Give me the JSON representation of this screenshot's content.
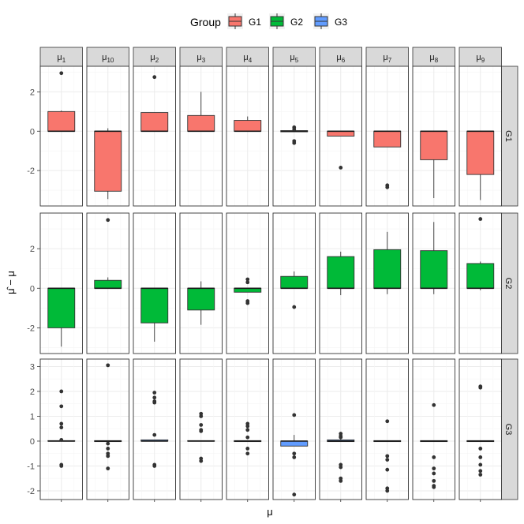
{
  "chart_data": {
    "type": "bar",
    "subtype": "faceted boxplot grid",
    "xlabel": "μ",
    "ylabel": "μ̂ − μ",
    "legend": {
      "title": "Group",
      "position": "top",
      "entries": [
        {
          "name": "G1",
          "color": "#F8766D"
        },
        {
          "name": "G2",
          "color": "#00BA38"
        },
        {
          "name": "G3",
          "color": "#619CFF"
        }
      ]
    },
    "column_labels": [
      {
        "base": "μ",
        "sub": "1"
      },
      {
        "base": "μ",
        "sub": "10"
      },
      {
        "base": "μ",
        "sub": "2"
      },
      {
        "base": "μ",
        "sub": "3"
      },
      {
        "base": "μ",
        "sub": "4"
      },
      {
        "base": "μ",
        "sub": "5"
      },
      {
        "base": "μ",
        "sub": "6"
      },
      {
        "base": "μ",
        "sub": "7"
      },
      {
        "base": "μ",
        "sub": "8"
      },
      {
        "base": "μ",
        "sub": "9"
      }
    ],
    "rows": [
      {
        "label": "G1",
        "color": "#F8766D",
        "ylim": [
          -3.8,
          3.3
        ],
        "yticks": [
          -2,
          0,
          2
        ],
        "tick_labels": [
          "-2",
          "0",
          "2"
        ],
        "boxes": [
          {
            "q1": 0,
            "median": 0,
            "q3": 1.0,
            "wlo": 0,
            "whi": 1.05,
            "outliers": [
              2.95
            ]
          },
          {
            "q1": -3.05,
            "median": 0,
            "q3": 0,
            "wlo": -3.45,
            "whi": 0.15,
            "outliers": []
          },
          {
            "q1": 0,
            "median": 0,
            "q3": 0.95,
            "wlo": 0,
            "whi": 0.95,
            "outliers": [
              2.75
            ]
          },
          {
            "q1": 0,
            "median": 0,
            "q3": 0.8,
            "wlo": 0,
            "whi": 2.0,
            "outliers": []
          },
          {
            "q1": 0,
            "median": 0,
            "q3": 0.55,
            "wlo": 0,
            "whi": 0.75,
            "outliers": []
          },
          {
            "q1": -0.03,
            "median": 0,
            "q3": 0.03,
            "wlo": -0.05,
            "whi": 0.05,
            "outliers": [
              0.2,
              0.1,
              -0.5,
              -0.6
            ]
          },
          {
            "q1": -0.25,
            "median": 0,
            "q3": 0,
            "wlo": -0.25,
            "whi": 0,
            "outliers": [
              -1.85
            ]
          },
          {
            "q1": -0.8,
            "median": 0,
            "q3": 0,
            "wlo": -0.8,
            "whi": 0,
            "outliers": [
              -2.75,
              -2.85
            ]
          },
          {
            "q1": -1.45,
            "median": 0,
            "q3": 0,
            "wlo": -3.4,
            "whi": 0,
            "outliers": []
          },
          {
            "q1": -2.2,
            "median": 0,
            "q3": 0,
            "wlo": -3.5,
            "whi": 0,
            "outliers": []
          }
        ]
      },
      {
        "label": "G2",
        "color": "#00BA38",
        "ylim": [
          -3.3,
          3.8
        ],
        "yticks": [
          -2,
          0,
          2
        ],
        "tick_labels": [
          "-2",
          "0",
          "2"
        ],
        "boxes": [
          {
            "q1": -2.0,
            "median": 0,
            "q3": 0,
            "wlo": -2.95,
            "whi": 0,
            "outliers": []
          },
          {
            "q1": 0,
            "median": 0,
            "q3": 0.4,
            "wlo": 0,
            "whi": 0.55,
            "outliers": [
              3.45
            ]
          },
          {
            "q1": -1.75,
            "median": 0,
            "q3": 0,
            "wlo": -2.7,
            "whi": 0,
            "outliers": []
          },
          {
            "q1": -1.1,
            "median": 0,
            "q3": 0,
            "wlo": -1.85,
            "whi": 0.35,
            "outliers": []
          },
          {
            "q1": -0.2,
            "median": 0,
            "q3": 0,
            "wlo": -0.2,
            "whi": 0,
            "outliers": [
              0.45,
              0.3,
              -0.65,
              -0.75
            ]
          },
          {
            "q1": 0,
            "median": 0,
            "q3": 0.6,
            "wlo": 0,
            "whi": 0.85,
            "outliers": [
              -0.95
            ]
          },
          {
            "q1": 0,
            "median": 0,
            "q3": 1.6,
            "wlo": -0.35,
            "whi": 1.85,
            "outliers": []
          },
          {
            "q1": 0,
            "median": 0,
            "q3": 1.95,
            "wlo": -0.3,
            "whi": 2.85,
            "outliers": []
          },
          {
            "q1": 0,
            "median": 0,
            "q3": 1.9,
            "wlo": -0.3,
            "whi": 3.35,
            "outliers": []
          },
          {
            "q1": 0,
            "median": 0,
            "q3": 1.25,
            "wlo": -0.1,
            "whi": 1.35,
            "outliers": [
              3.5
            ]
          }
        ]
      },
      {
        "label": "G3",
        "color": "#619CFF",
        "ylim": [
          -2.35,
          3.3
        ],
        "yticks": [
          -2,
          -1,
          0,
          1,
          2,
          3
        ],
        "tick_labels": [
          "-2",
          "-1",
          "0",
          "1",
          "2",
          "3"
        ],
        "boxes": [
          {
            "q1": 0,
            "median": 0,
            "q3": 0.02,
            "wlo": 0,
            "whi": 0.02,
            "outliers": [
              2.0,
              1.4,
              0.7,
              0.55,
              0.05,
              -0.95,
              -1.0
            ]
          },
          {
            "q1": -0.02,
            "median": 0,
            "q3": 0.02,
            "wlo": -0.02,
            "whi": 0.02,
            "outliers": [
              3.05,
              -0.1,
              -0.3,
              -0.5,
              -0.6,
              -1.1
            ]
          },
          {
            "q1": 0,
            "median": 0,
            "q3": 0.05,
            "wlo": 0,
            "whi": 0.05,
            "outliers": [
              1.95,
              1.75,
              1.6,
              1.55,
              0.25,
              -0.95,
              -1.0
            ]
          },
          {
            "q1": 0,
            "median": 0,
            "q3": 0.02,
            "wlo": 0,
            "whi": 0.02,
            "outliers": [
              1.1,
              1.0,
              0.65,
              0.45,
              0.4,
              -0.7,
              -0.8
            ]
          },
          {
            "q1": -0.02,
            "median": 0,
            "q3": 0.02,
            "wlo": -0.02,
            "whi": 0.02,
            "outliers": [
              0.7,
              0.6,
              0.45,
              0.15,
              -0.3,
              -0.5
            ]
          },
          {
            "q1": -0.2,
            "median": 0,
            "q3": 0,
            "wlo": -0.2,
            "whi": 0.25,
            "outliers": [
              1.05,
              -0.5,
              -0.65,
              -2.15
            ]
          },
          {
            "q1": -0.02,
            "median": 0,
            "q3": 0.05,
            "wlo": -0.02,
            "whi": 0.1,
            "outliers": [
              0.3,
              0.2,
              0.15,
              -0.95,
              -1.05,
              -1.5,
              -1.6
            ]
          },
          {
            "q1": -0.02,
            "median": 0,
            "q3": 0.02,
            "wlo": -0.02,
            "whi": 0.02,
            "outliers": [
              0.8,
              -0.6,
              -0.75,
              -1.15,
              -1.9,
              -2.0
            ]
          },
          {
            "q1": -0.02,
            "median": 0,
            "q3": 0.02,
            "wlo": -0.02,
            "whi": 0.02,
            "outliers": [
              1.45,
              -0.65,
              -1.1,
              -1.3,
              -1.6,
              -1.8,
              -1.85
            ]
          },
          {
            "q1": -0.02,
            "median": 0,
            "q3": 0.02,
            "wlo": -0.02,
            "whi": 0.02,
            "outliers": [
              2.2,
              2.15,
              -0.3,
              -0.65,
              -0.95,
              -1.2,
              -1.35
            ]
          }
        ]
      }
    ],
    "grid": true,
    "theme": {
      "strip_fill": "#D9D9D9",
      "panel_border": "#333333",
      "grid_major": "#EBEBEB",
      "grid_minor": "#F5F5F5"
    }
  }
}
